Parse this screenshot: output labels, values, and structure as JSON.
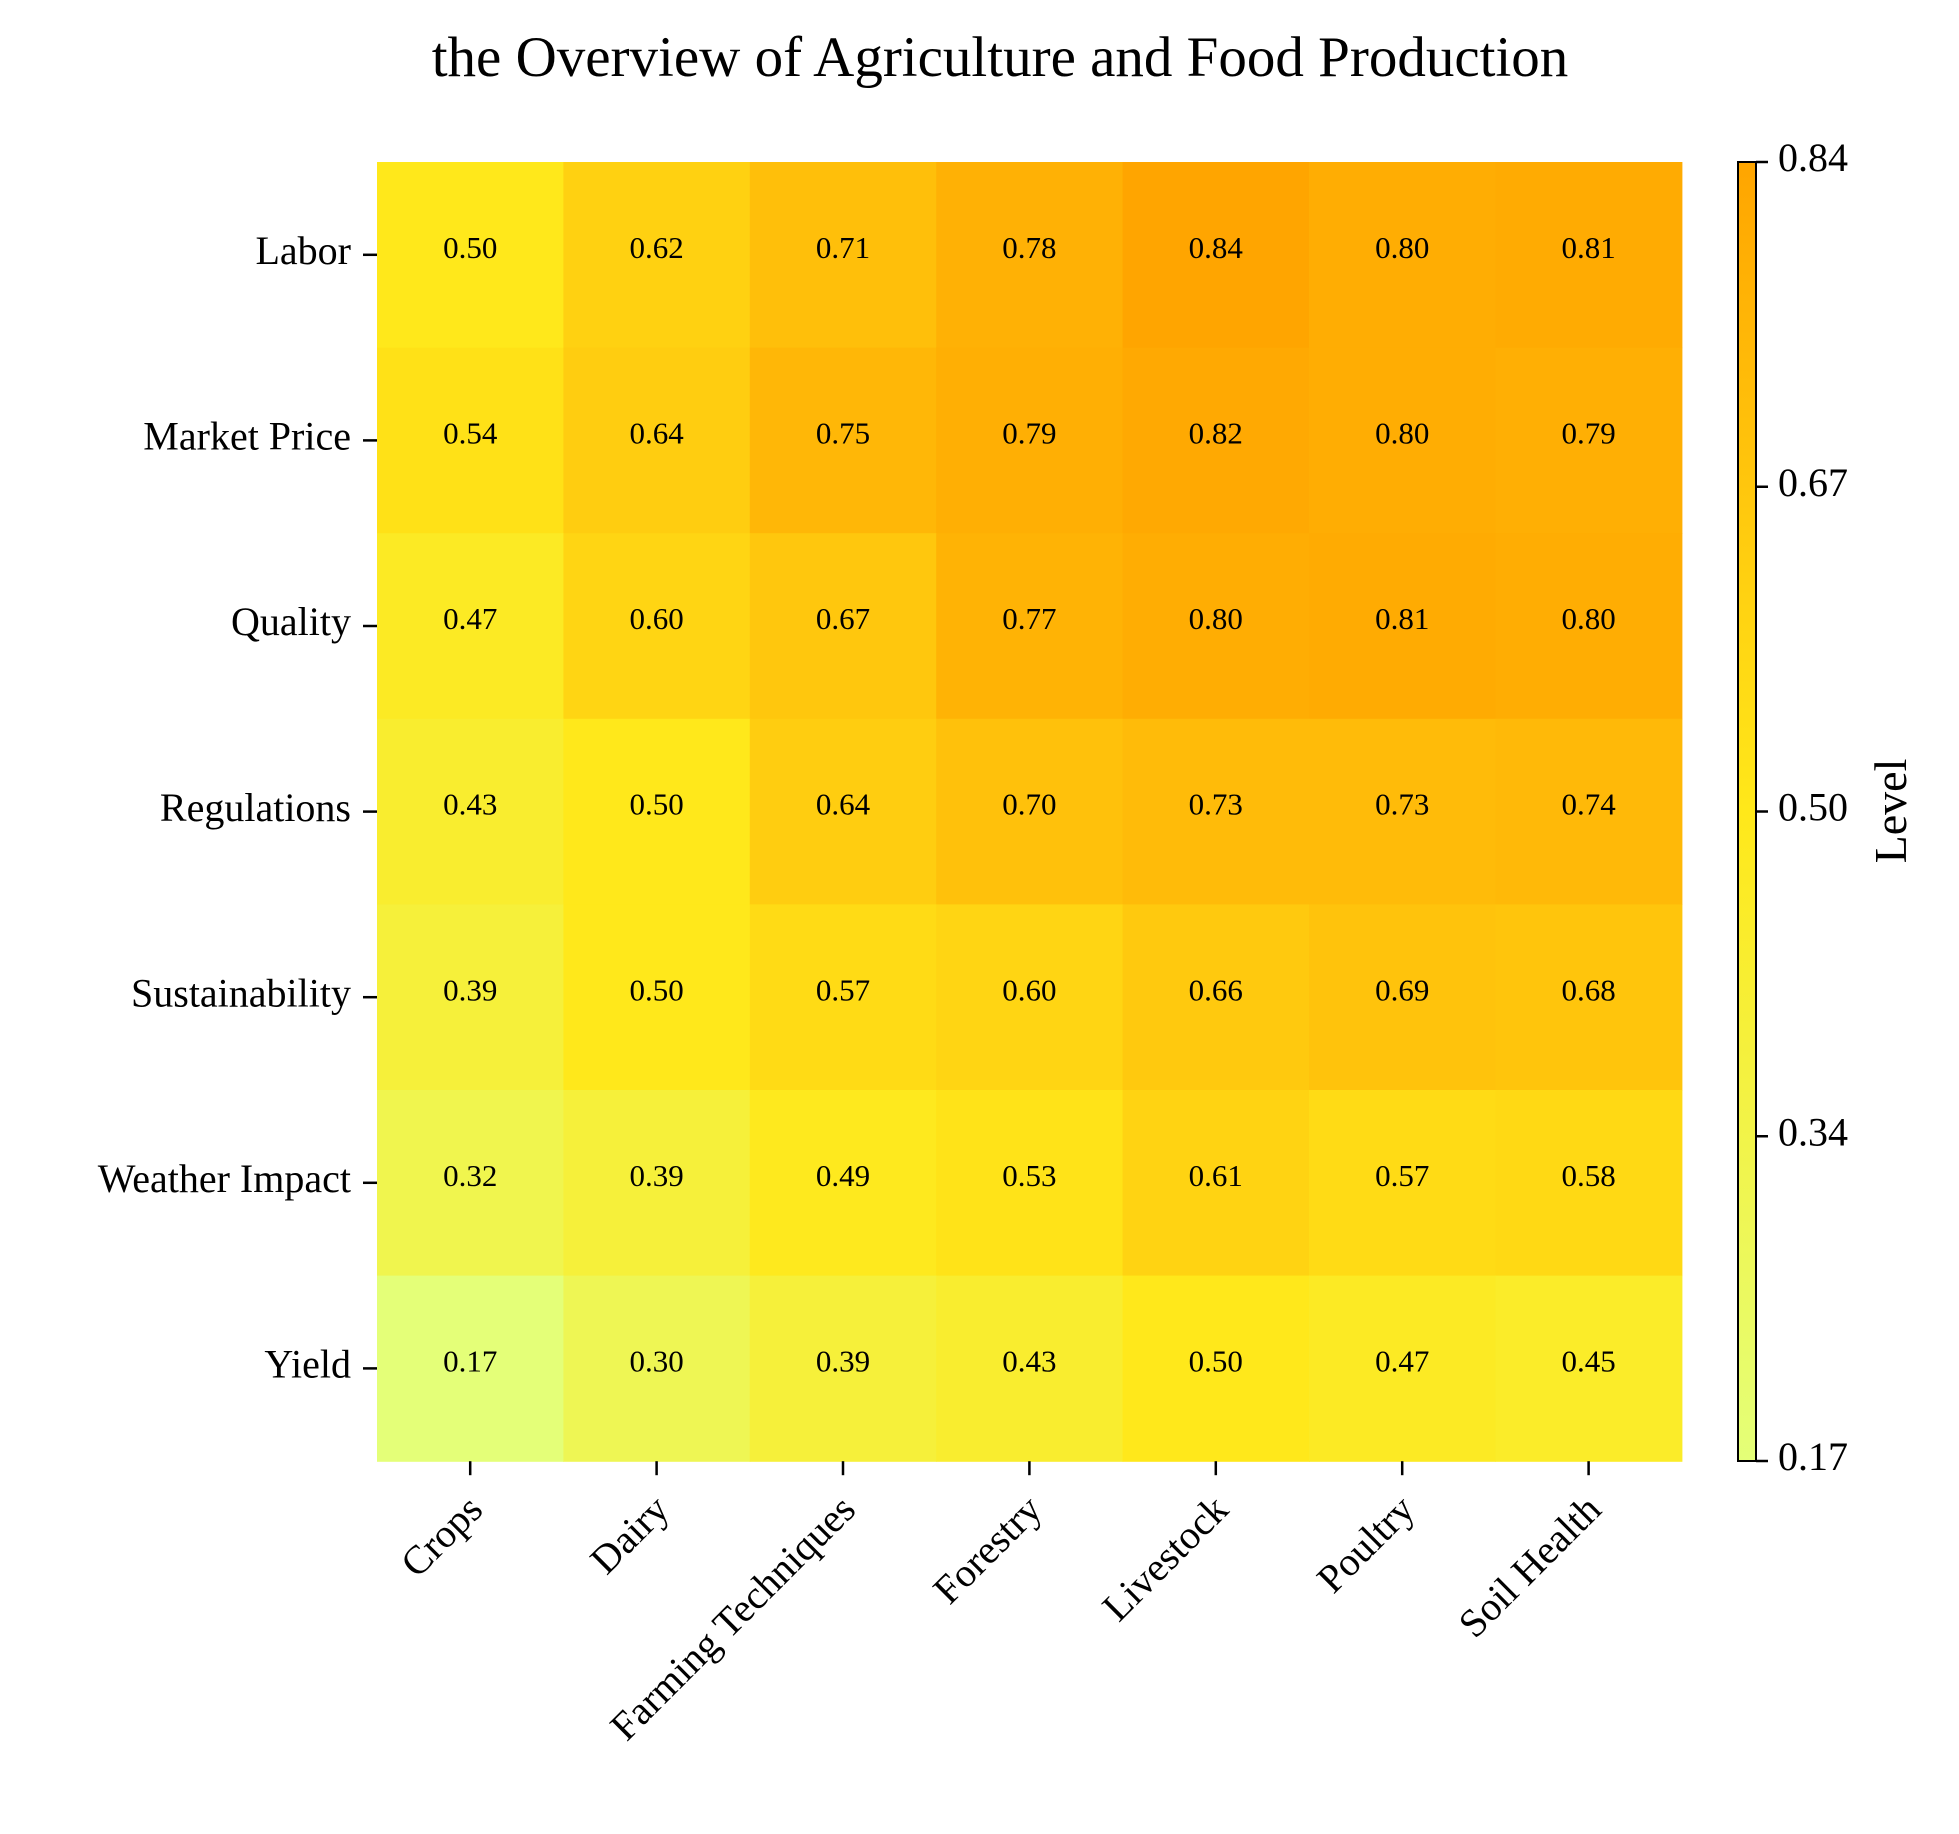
{
  "chart_data": {
    "type": "heatmap",
    "title": "the Overview of Agriculture and Food Production",
    "x_categories": [
      "Crops",
      "Dairy",
      "Farming Techniques",
      "Forestry",
      "Livestock",
      "Poultry",
      "Soil Health"
    ],
    "y_categories": [
      "Labor",
      "Market Price",
      "Quality",
      "Regulations",
      "Sustainability",
      "Weather Impact",
      "Yield"
    ],
    "values": [
      [
        0.5,
        0.62,
        0.71,
        0.78,
        0.84,
        0.8,
        0.81
      ],
      [
        0.54,
        0.64,
        0.75,
        0.79,
        0.82,
        0.8,
        0.79
      ],
      [
        0.47,
        0.6,
        0.67,
        0.77,
        0.8,
        0.81,
        0.8
      ],
      [
        0.43,
        0.5,
        0.64,
        0.7,
        0.73,
        0.73,
        0.74
      ],
      [
        0.39,
        0.5,
        0.57,
        0.6,
        0.66,
        0.69,
        0.68
      ],
      [
        0.32,
        0.39,
        0.49,
        0.53,
        0.61,
        0.57,
        0.58
      ],
      [
        0.17,
        0.3,
        0.39,
        0.43,
        0.5,
        0.47,
        0.45
      ]
    ],
    "colorbar": {
      "label": "Level",
      "range": [
        0.17,
        0.84
      ],
      "ticks": [
        "0.17",
        "0.34",
        "0.50",
        "0.67",
        "0.84"
      ],
      "colors": [
        "#e4ff78",
        "#ffe81a",
        "#ffa500"
      ]
    }
  }
}
